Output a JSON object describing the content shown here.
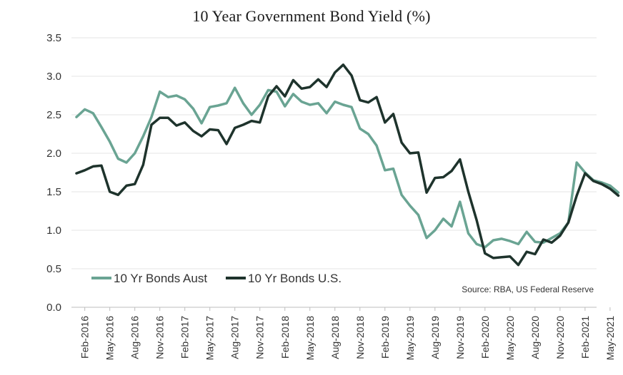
{
  "chart_data": {
    "type": "line",
    "title": "10 Year Government Bond Yield (%)",
    "source": "Source: RBA, US Federal Reserve",
    "ylim": [
      0,
      3.5
    ],
    "yticks": [
      "0.0",
      "0.5",
      "1.0",
      "1.5",
      "2.0",
      "2.5",
      "3.0",
      "3.5"
    ],
    "grid": "horizontal",
    "legend_placement": "bottom-left",
    "x_tick_labels": [
      "Feb-2016",
      "May-2016",
      "Aug-2016",
      "Nov-2016",
      "Feb-2017",
      "May-2017",
      "Aug-2017",
      "Nov-2017",
      "Feb-2018",
      "May-2018",
      "Aug-2018",
      "Nov-2018",
      "Feb-2019",
      "May-2019",
      "Aug-2019",
      "Nov-2019",
      "Feb-2020",
      "May-2020",
      "Aug-2020",
      "Nov-2020",
      "Feb-2021",
      "May-2021"
    ],
    "x": [
      "Jan-2016",
      "Feb-2016",
      "Mar-2016",
      "Apr-2016",
      "May-2016",
      "Jun-2016",
      "Jul-2016",
      "Aug-2016",
      "Sep-2016",
      "Oct-2016",
      "Nov-2016",
      "Dec-2016",
      "Jan-2017",
      "Feb-2017",
      "Mar-2017",
      "Apr-2017",
      "May-2017",
      "Jun-2017",
      "Jul-2017",
      "Aug-2017",
      "Sep-2017",
      "Oct-2017",
      "Nov-2017",
      "Dec-2017",
      "Jan-2018",
      "Feb-2018",
      "Mar-2018",
      "Apr-2018",
      "May-2018",
      "Jun-2018",
      "Jul-2018",
      "Aug-2018",
      "Sep-2018",
      "Oct-2018",
      "Nov-2018",
      "Dec-2018",
      "Jan-2019",
      "Feb-2019",
      "Mar-2019",
      "Apr-2019",
      "May-2019",
      "Jun-2019",
      "Jul-2019",
      "Aug-2019",
      "Sep-2019",
      "Oct-2019",
      "Nov-2019",
      "Dec-2019",
      "Jan-2020",
      "Feb-2020",
      "Mar-2020",
      "Apr-2020",
      "May-2020",
      "Jun-2020",
      "Jul-2020",
      "Aug-2020",
      "Sep-2020",
      "Oct-2020",
      "Nov-2020",
      "Dec-2020",
      "Jan-2021",
      "Feb-2021",
      "Mar-2021",
      "Apr-2021",
      "May-2021",
      "Jun-2021"
    ],
    "series": [
      {
        "name": "10 Yr Bonds Aust",
        "color": "#6aa493",
        "values": [
          2.47,
          2.57,
          2.52,
          2.34,
          2.15,
          1.93,
          1.88,
          2.0,
          2.22,
          2.47,
          2.8,
          2.73,
          2.75,
          2.7,
          2.58,
          2.39,
          2.6,
          2.62,
          2.65,
          2.85,
          2.65,
          2.5,
          2.63,
          2.82,
          2.8,
          2.61,
          2.77,
          2.67,
          2.63,
          2.65,
          2.52,
          2.67,
          2.63,
          2.6,
          2.32,
          2.25,
          2.1,
          1.78,
          1.8,
          1.46,
          1.32,
          1.2,
          0.9,
          1.0,
          1.15,
          1.05,
          1.37,
          0.96,
          0.82,
          0.78,
          0.87,
          0.89,
          0.86,
          0.82,
          0.98,
          0.85,
          0.84,
          0.9,
          0.96,
          1.1,
          1.88,
          1.75,
          1.65,
          1.62,
          1.58,
          1.49
        ]
      },
      {
        "name": "10 Yr Bonds U.S.",
        "color": "#1e332c",
        "values": [
          1.74,
          1.78,
          1.83,
          1.84,
          1.5,
          1.46,
          1.58,
          1.6,
          1.85,
          2.37,
          2.46,
          2.46,
          2.36,
          2.4,
          2.29,
          2.22,
          2.31,
          2.3,
          2.12,
          2.33,
          2.37,
          2.42,
          2.4,
          2.74,
          2.87,
          2.74,
          2.95,
          2.84,
          2.86,
          2.96,
          2.86,
          3.05,
          3.15,
          3.01,
          2.69,
          2.66,
          2.73,
          2.4,
          2.51,
          2.14,
          2.0,
          2.01,
          1.49,
          1.68,
          1.69,
          1.77,
          1.92,
          1.5,
          1.13,
          0.7,
          0.64,
          0.65,
          0.66,
          0.55,
          0.72,
          0.69,
          0.88,
          0.84,
          0.93,
          1.1,
          1.45,
          1.74,
          1.64,
          1.6,
          1.54,
          1.45
        ]
      }
    ]
  }
}
